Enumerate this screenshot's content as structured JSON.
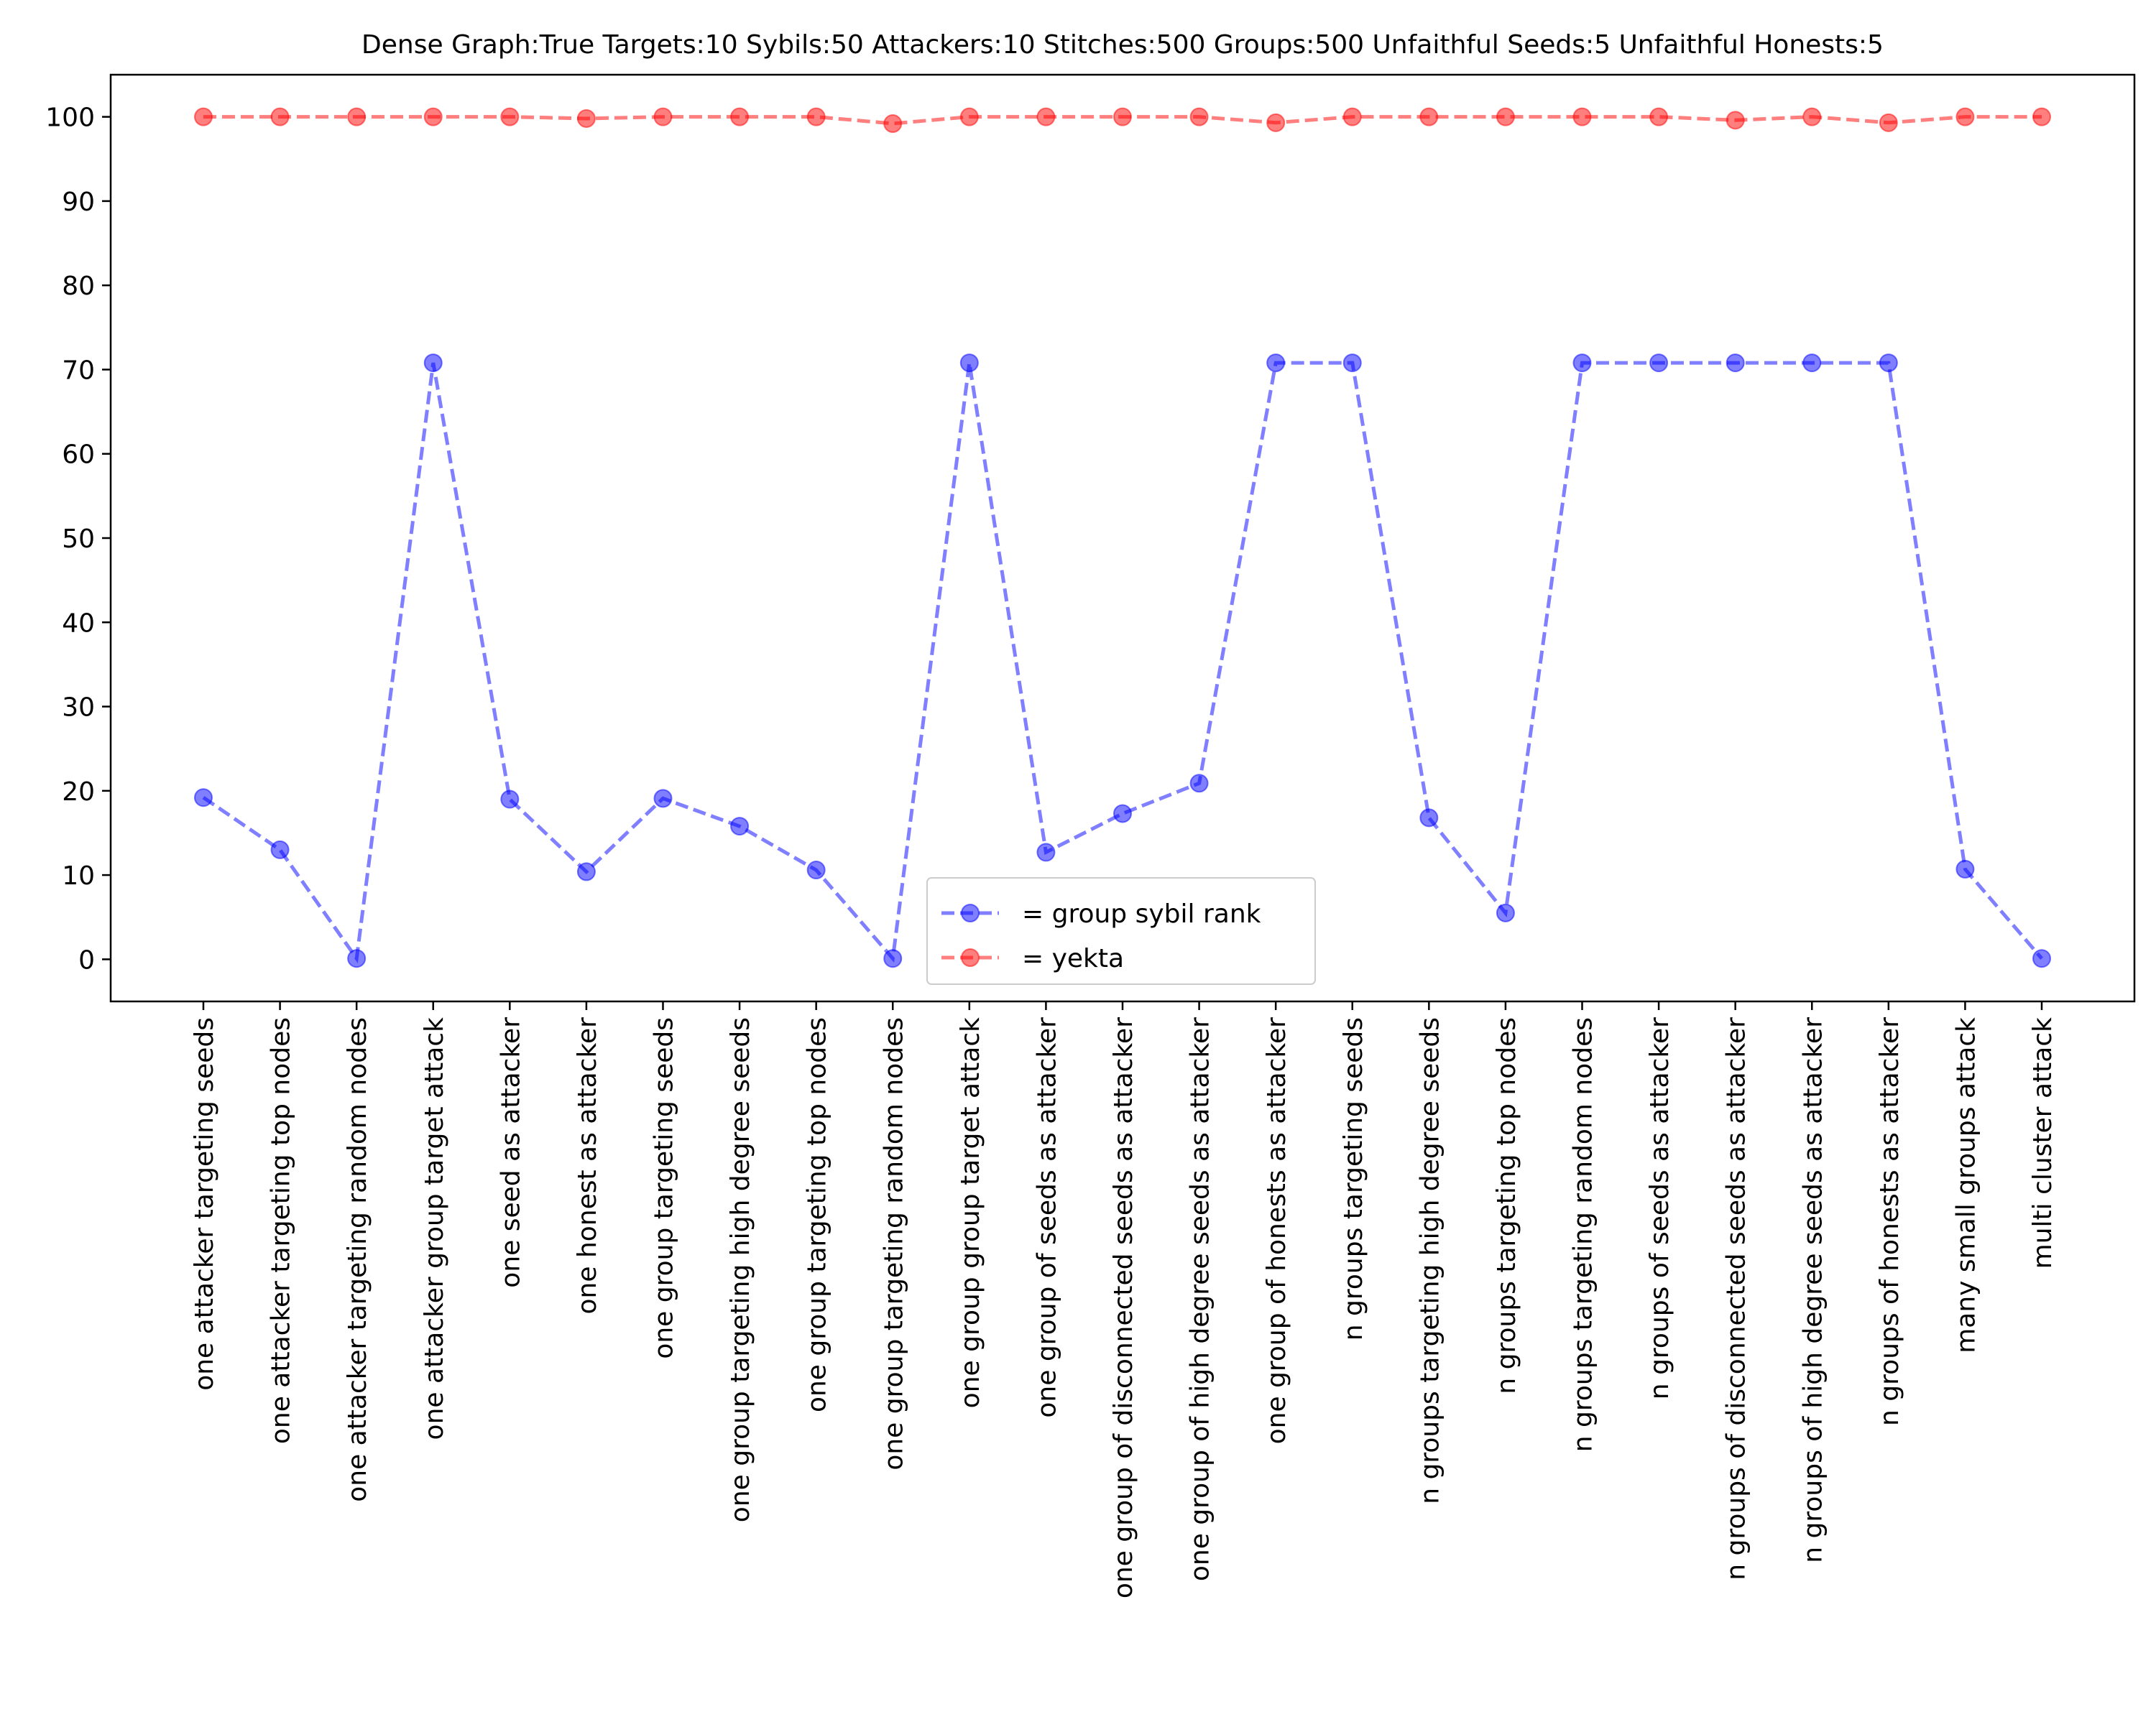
{
  "chart_data": {
    "type": "line",
    "title": "Dense Graph:True Targets:10 Sybils:50 Attackers:10 Stitches:500 Groups:500 Unfaithful Seeds:5 Unfaithful Honests:5",
    "xlabel": "",
    "ylabel": "",
    "ylim": [
      -5,
      105
    ],
    "yticks": [
      0,
      10,
      20,
      30,
      40,
      50,
      60,
      70,
      80,
      90,
      100
    ],
    "grid": false,
    "legend_position": "lower-center",
    "categories": [
      "one attacker targeting seeds",
      "one attacker targeting top nodes",
      "one attacker targeting random nodes",
      "one attacker group target attack",
      "one seed as attacker",
      "one honest as attacker",
      "one group targeting seeds",
      "one group targeting high degree seeds",
      "one group targeting top nodes",
      "one group targeting random nodes",
      "one group group target attack",
      "one group of seeds as attacker",
      "one group of disconnected seeds as attacker",
      "one group of high degree seeds as attacker",
      "one group of honests as attacker",
      "n groups targeting seeds",
      "n groups targeting high degree seeds",
      "n groups targeting top nodes",
      "n groups targeting random nodes",
      "n groups of seeds as attacker",
      "n groups of disconnected seeds as attacker",
      "n groups of high degree seeds as attacker",
      "n groups of honests as attacker",
      "many small groups attack",
      "multi cluster attack"
    ],
    "series": [
      {
        "name": "= group sybil rank",
        "color": "#0000ff",
        "values": [
          19.2,
          13.0,
          0.1,
          70.8,
          19.0,
          10.4,
          19.1,
          15.8,
          10.6,
          0.1,
          70.8,
          12.7,
          17.3,
          20.9,
          70.8,
          70.8,
          16.8,
          5.5,
          70.8,
          70.8,
          70.8,
          70.8,
          70.8,
          10.7,
          0.1
        ]
      },
      {
        "name": "= yekta",
        "color": "#ff0000",
        "values": [
          100,
          100,
          100,
          100,
          100,
          99.8,
          100,
          100,
          100,
          99.2,
          100,
          100,
          100,
          100,
          99.3,
          100,
          100,
          100,
          100,
          100,
          99.6,
          100,
          99.3,
          100,
          100
        ]
      }
    ]
  }
}
